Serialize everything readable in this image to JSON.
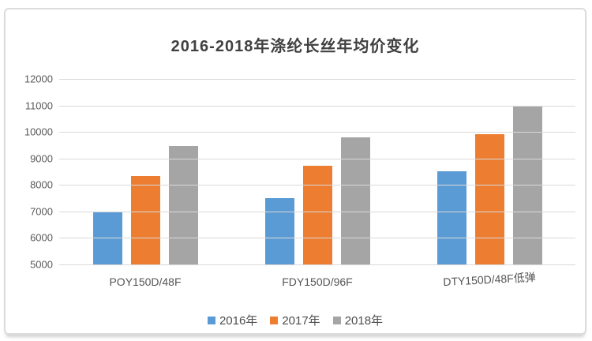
{
  "chart_data": {
    "type": "bar",
    "title": "2016-2018年涤纶长丝年均价变化",
    "categories": [
      "POY150D/48F",
      "FDY150D/96F",
      "DTY150D/48F低弹"
    ],
    "series": [
      {
        "name": "2016年",
        "color": "#5B9BD5",
        "values": [
          7000,
          7500,
          8520
        ]
      },
      {
        "name": "2017年",
        "color": "#ED7D31",
        "values": [
          8350,
          8730,
          9930
        ]
      },
      {
        "name": "2018年",
        "color": "#A5A5A5",
        "values": [
          9480,
          9800,
          11000
        ]
      }
    ],
    "ylim": [
      5000,
      12000
    ],
    "yticks": [
      12000,
      11000,
      10000,
      9000,
      8000,
      7000,
      6000,
      5000
    ],
    "xlabel": "",
    "ylabel": "",
    "grid": "horizontal",
    "legend_position": "bottom",
    "colors": {
      "gridline": "#d9d9d9",
      "axis_label": "#595959",
      "title": "#404040",
      "frame_border": "#dcdcdc"
    }
  }
}
